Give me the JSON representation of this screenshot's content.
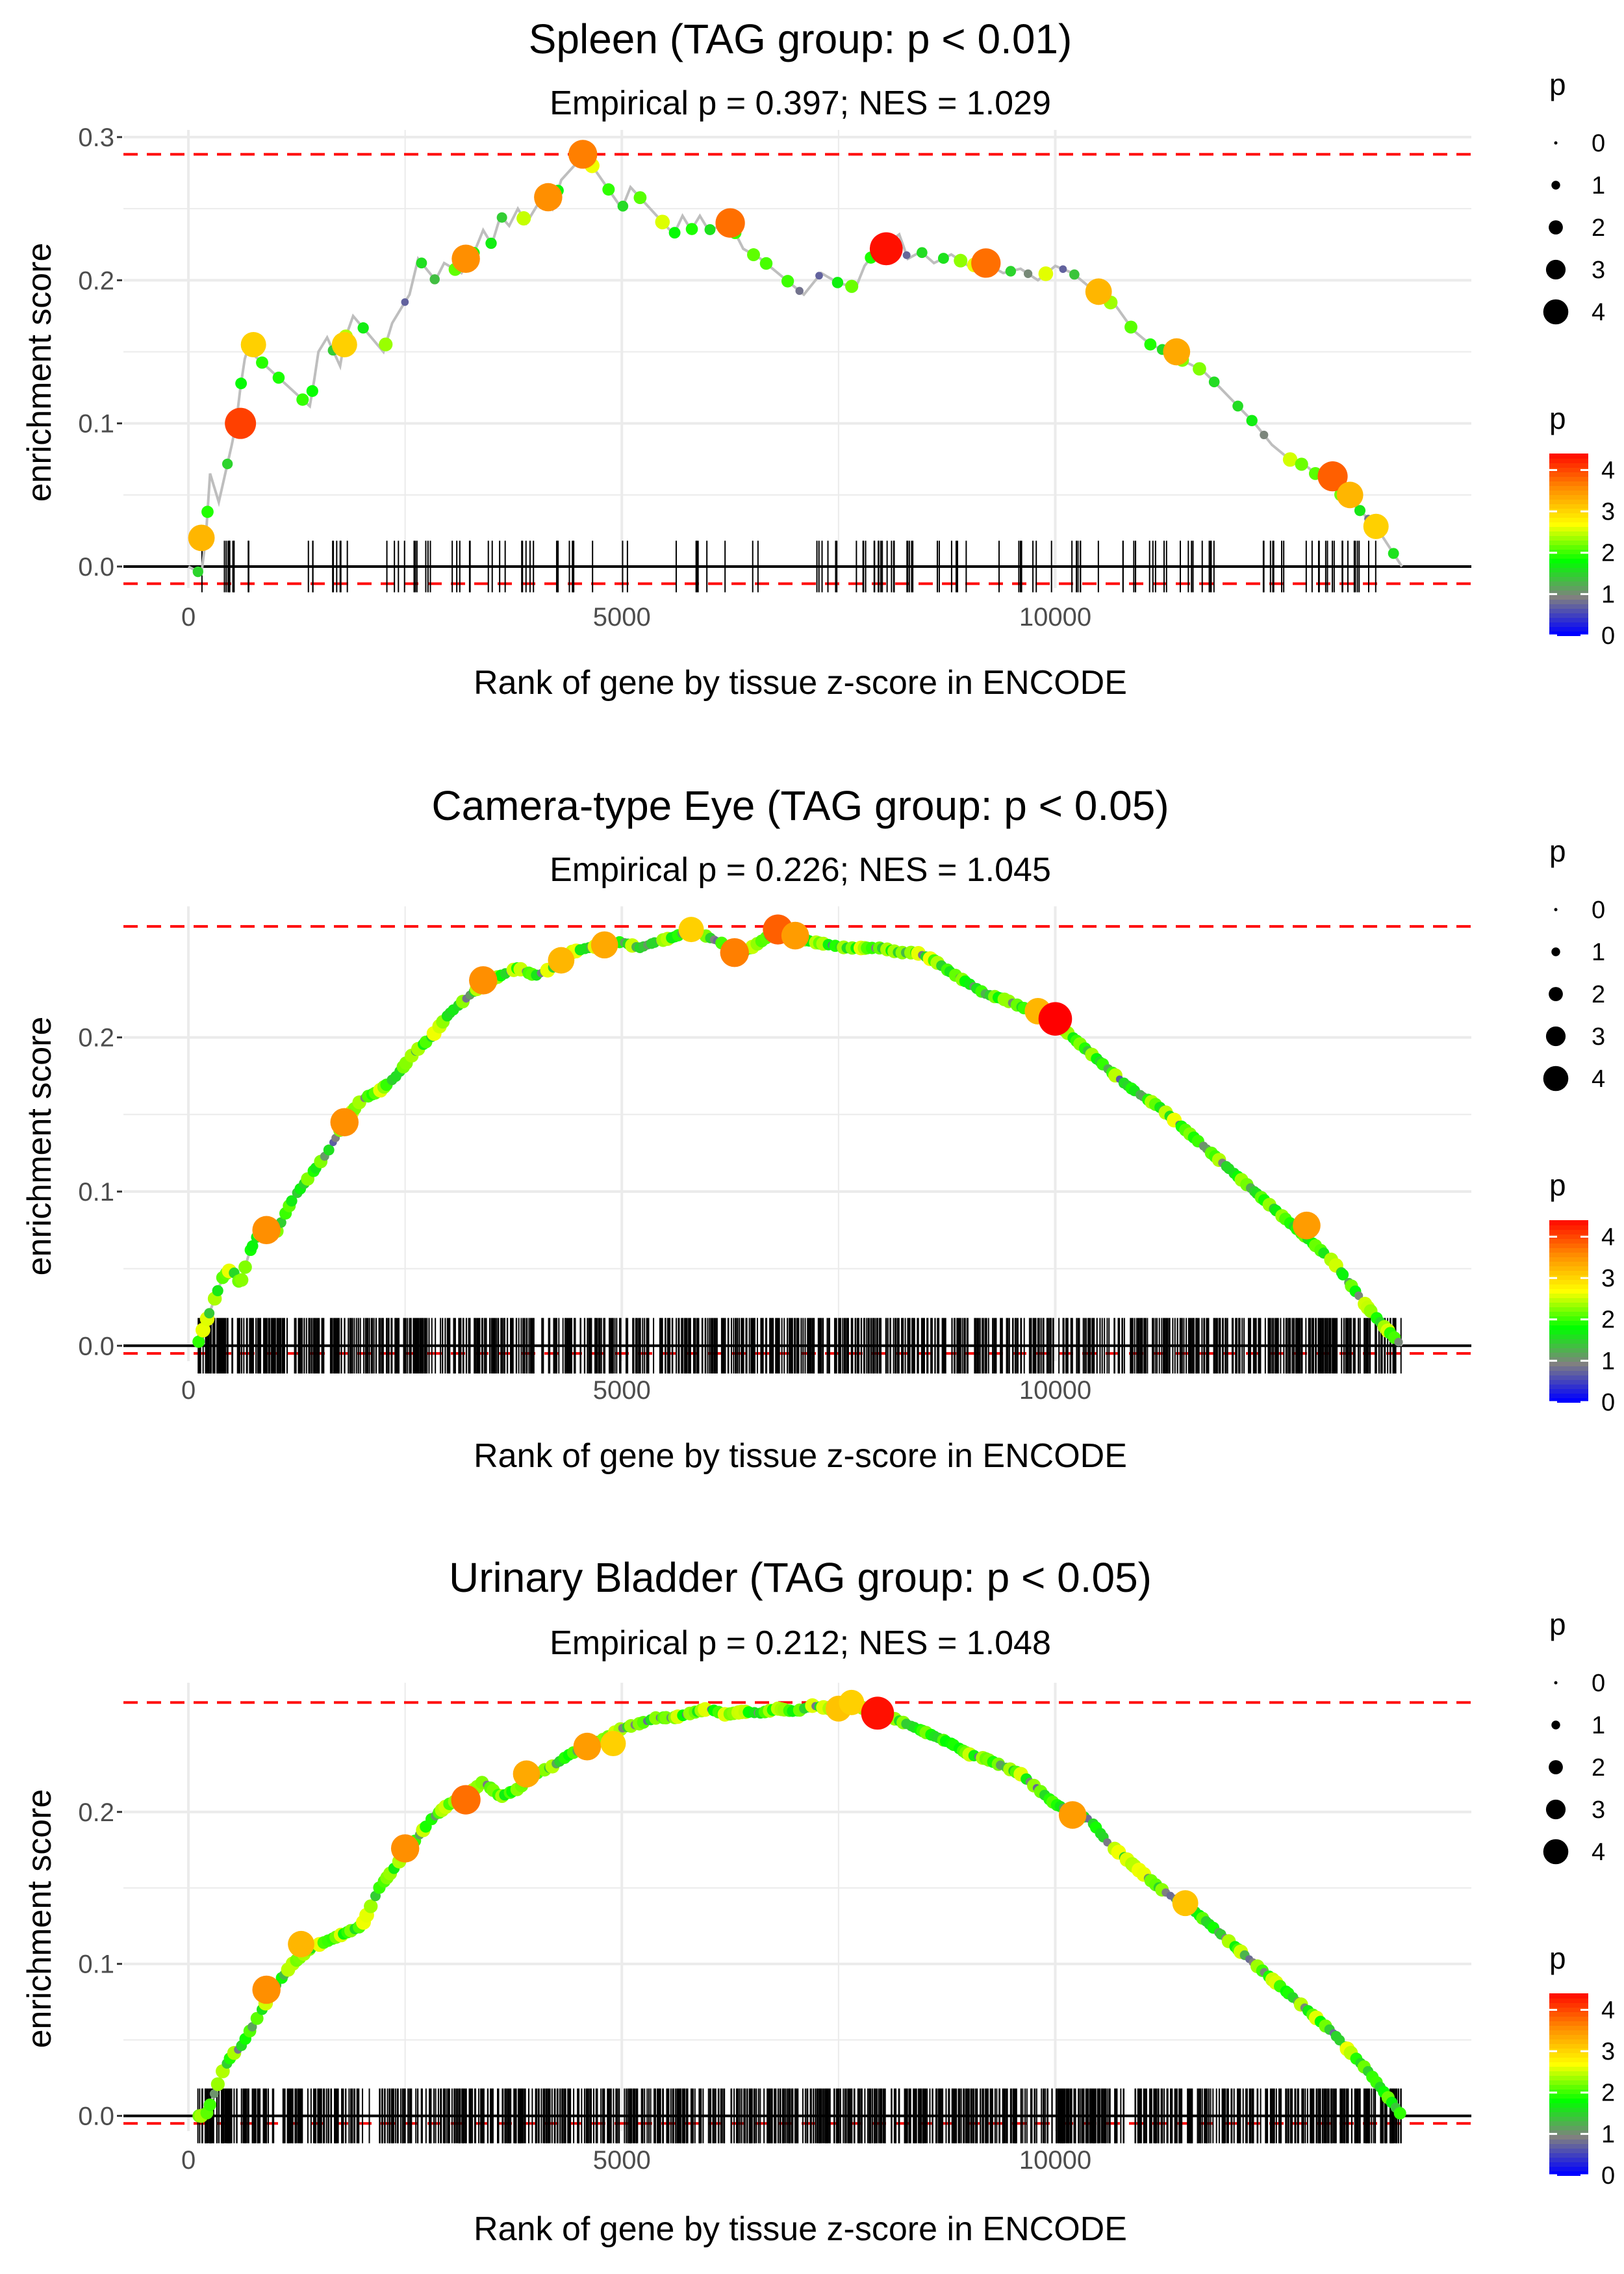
{
  "chart_data": [
    {
      "type": "line",
      "title": "Spleen (TAG group: p < 0.01)",
      "subtitle": "Empirical p = 0.397; NES = 1.029",
      "xlabel": "Rank of gene by tissue z-score in ENCODE",
      "ylabel": "enrichment score",
      "xlim": [
        -750,
        14800
      ],
      "ylim": [
        -0.015,
        0.305
      ],
      "xticks": [
        0,
        5000,
        10000
      ],
      "xtick_labels": [
        "0",
        "5000",
        "10000"
      ],
      "yticks": [
        0.0,
        0.1,
        0.2,
        0.3
      ],
      "ytick_labels": [
        "0.0",
        "0.1",
        "0.2",
        "0.3"
      ],
      "max_es": 0.288,
      "min_es": -0.012,
      "curve": {
        "x": [
          0,
          150,
          200,
          250,
          350,
          500,
          550,
          600,
          650,
          700,
          750,
          1400,
          1450,
          1500,
          1600,
          1750,
          1800,
          1900,
          2250,
          2350,
          2450,
          2550,
          2650,
          2850,
          2950,
          3150,
          3300,
          3400,
          3500,
          3600,
          3700,
          3800,
          3900,
          4100,
          4200,
          4300,
          4450,
          4550,
          4600,
          5000,
          5100,
          5600,
          5700,
          5800,
          5900,
          6000,
          6250,
          6400,
          6600,
          6800,
          7100,
          7300,
          7500,
          7700,
          7800,
          7900,
          8050,
          8200,
          8300,
          8450,
          8600,
          8800,
          9000,
          9200,
          9400,
          9600,
          9800,
          10000,
          10200,
          10300,
          10500,
          10700,
          10900,
          11100,
          11300,
          11500,
          11700,
          11900,
          12300,
          12500,
          12700,
          12900,
          13100,
          13300,
          13500,
          13700,
          14000
        ],
        "y": [
          0.0,
          -0.005,
          0.02,
          0.065,
          0.045,
          0.085,
          0.1,
          0.125,
          0.145,
          0.155,
          0.148,
          0.112,
          0.13,
          0.15,
          0.16,
          0.14,
          0.158,
          0.175,
          0.15,
          0.17,
          0.18,
          0.19,
          0.215,
          0.2,
          0.212,
          0.205,
          0.22,
          0.235,
          0.225,
          0.245,
          0.238,
          0.25,
          0.24,
          0.26,
          0.25,
          0.27,
          0.28,
          0.288,
          0.285,
          0.25,
          0.265,
          0.232,
          0.245,
          0.235,
          0.245,
          0.235,
          0.24,
          0.222,
          0.215,
          0.205,
          0.19,
          0.205,
          0.198,
          0.195,
          0.21,
          0.218,
          0.225,
          0.232,
          0.215,
          0.22,
          0.212,
          0.218,
          0.21,
          0.212,
          0.205,
          0.208,
          0.2,
          0.21,
          0.205,
          0.2,
          0.19,
          0.182,
          0.165,
          0.155,
          0.15,
          0.143,
          0.137,
          0.125,
          0.1,
          0.085,
          0.075,
          0.07,
          0.06,
          0.05,
          0.04,
          0.028,
          0.0
        ]
      },
      "highlight_points": [
        {
          "x": 150,
          "y": 0.02,
          "p": 3.2
        },
        {
          "x": 600,
          "y": 0.1,
          "p": 4.0
        },
        {
          "x": 750,
          "y": 0.155,
          "p": 3.0
        },
        {
          "x": 1800,
          "y": 0.155,
          "p": 3.0
        },
        {
          "x": 3200,
          "y": 0.215,
          "p": 3.5
        },
        {
          "x": 4150,
          "y": 0.258,
          "p": 3.5
        },
        {
          "x": 4550,
          "y": 0.288,
          "p": 3.6
        },
        {
          "x": 6250,
          "y": 0.24,
          "p": 3.7
        },
        {
          "x": 8050,
          "y": 0.222,
          "p": 4.3
        },
        {
          "x": 9200,
          "y": 0.212,
          "p": 3.7
        },
        {
          "x": 10500,
          "y": 0.192,
          "p": 3.2
        },
        {
          "x": 11400,
          "y": 0.15,
          "p": 3.3
        },
        {
          "x": 13200,
          "y": 0.063,
          "p": 3.8
        },
        {
          "x": 13400,
          "y": 0.05,
          "p": 3.2
        },
        {
          "x": 13700,
          "y": 0.028,
          "p": 3.0
        }
      ],
      "hit_count": 160,
      "hit_seed": 11,
      "dot_density": 0.5,
      "hit_clusters": [
        [
          100,
          800,
          12
        ],
        [
          1300,
          1500,
          3
        ],
        [
          1600,
          2000,
          6
        ],
        [
          2200,
          2900,
          10
        ],
        [
          3000,
          4700,
          22
        ],
        [
          5000,
          5100,
          2
        ],
        [
          5600,
          6200,
          6
        ],
        [
          6500,
          6700,
          2
        ],
        [
          7100,
          7600,
          6
        ],
        [
          7700,
          8400,
          20
        ],
        [
          8600,
          9100,
          6
        ],
        [
          9300,
          9800,
          6
        ],
        [
          9900,
          10500,
          7
        ],
        [
          10700,
          11300,
          9
        ],
        [
          11400,
          12000,
          9
        ],
        [
          12400,
          13700,
          24
        ]
      ]
    },
    {
      "type": "line",
      "title": "Camera-type Eye (TAG group: p < 0.05)",
      "subtitle": "Empirical p = 0.226; NES = 1.045",
      "xlabel": "Rank of gene by tissue z-score in ENCODE",
      "ylabel": "enrichment score",
      "xlim": [
        -750,
        14800
      ],
      "ylim": [
        -0.01,
        0.285
      ],
      "xticks": [
        0,
        5000,
        10000
      ],
      "xtick_labels": [
        "0",
        "5000",
        "10000"
      ],
      "yticks": [
        0.0,
        0.1,
        0.2
      ],
      "ytick_labels": [
        "0.0",
        "0.1",
        "0.2"
      ],
      "max_es": 0.272,
      "min_es": -0.005,
      "curve": {
        "x": [
          100,
          200,
          300,
          400,
          500,
          600,
          700,
          800,
          900,
          1000,
          1200,
          1400,
          1600,
          1800,
          2000,
          2200,
          2400,
          2600,
          2800,
          3000,
          3200,
          3400,
          3600,
          3800,
          4000,
          4200,
          4400,
          4600,
          4800,
          5000,
          5200,
          5400,
          5600,
          5800,
          6000,
          6200,
          6400,
          6600,
          6800,
          7000,
          7200,
          7400,
          7600,
          7800,
          8000,
          8200,
          8400,
          8600,
          8800,
          9000,
          9200,
          9400,
          9600,
          9800,
          10000,
          10200,
          10400,
          10600,
          10800,
          11000,
          11200,
          11400,
          11600,
          11800,
          12000,
          12200,
          12400,
          12600,
          12800,
          13000,
          13200,
          13400,
          13600,
          13800,
          14000
        ],
        "y": [
          0.0,
          0.015,
          0.03,
          0.045,
          0.05,
          0.04,
          0.06,
          0.072,
          0.075,
          0.072,
          0.095,
          0.11,
          0.125,
          0.145,
          0.16,
          0.165,
          0.175,
          0.19,
          0.2,
          0.215,
          0.225,
          0.235,
          0.24,
          0.245,
          0.24,
          0.245,
          0.255,
          0.258,
          0.26,
          0.262,
          0.258,
          0.262,
          0.265,
          0.27,
          0.265,
          0.26,
          0.255,
          0.262,
          0.27,
          0.265,
          0.262,
          0.26,
          0.258,
          0.258,
          0.258,
          0.255,
          0.255,
          0.25,
          0.242,
          0.235,
          0.228,
          0.225,
          0.22,
          0.215,
          0.21,
          0.2,
          0.19,
          0.18,
          0.17,
          0.162,
          0.155,
          0.145,
          0.135,
          0.125,
          0.115,
          0.105,
          0.095,
          0.085,
          0.075,
          0.065,
          0.055,
          0.04,
          0.025,
          0.012,
          0.0
        ]
      },
      "highlight_points": [
        {
          "x": 900,
          "y": 0.075,
          "p": 3.5
        },
        {
          "x": 1800,
          "y": 0.145,
          "p": 3.5
        },
        {
          "x": 3400,
          "y": 0.237,
          "p": 3.5
        },
        {
          "x": 4300,
          "y": 0.25,
          "p": 3.2
        },
        {
          "x": 4800,
          "y": 0.26,
          "p": 3.3
        },
        {
          "x": 5800,
          "y": 0.27,
          "p": 3.0
        },
        {
          "x": 6300,
          "y": 0.255,
          "p": 3.6
        },
        {
          "x": 6800,
          "y": 0.27,
          "p": 3.8
        },
        {
          "x": 7000,
          "y": 0.266,
          "p": 3.4
        },
        {
          "x": 9800,
          "y": 0.217,
          "p": 3.2
        },
        {
          "x": 10000,
          "y": 0.212,
          "p": 4.4
        },
        {
          "x": 12900,
          "y": 0.078,
          "p": 3.4
        }
      ],
      "hit_count": 1000,
      "hit_seed": 23,
      "dot_density": 2.2,
      "hit_clusters": [
        [
          100,
          14000,
          1000
        ]
      ]
    },
    {
      "type": "line",
      "title": "Urinary Bladder (TAG group: p < 0.05)",
      "subtitle": "Empirical p = 0.212; NES = 1.048",
      "xlabel": "Rank of gene by tissue z-score in ENCODE",
      "ylabel": "enrichment score",
      "xlim": [
        -750,
        14800
      ],
      "ylim": [
        -0.01,
        0.285
      ],
      "xticks": [
        0,
        5000,
        10000
      ],
      "xtick_labels": [
        "0",
        "5000",
        "10000"
      ],
      "yticks": [
        0.0,
        0.1,
        0.2
      ],
      "ytick_labels": [
        "0.0",
        "0.1",
        "0.2"
      ],
      "max_es": 0.272,
      "min_es": -0.005,
      "curve": {
        "x": [
          100,
          200,
          300,
          400,
          500,
          600,
          800,
          1000,
          1200,
          1400,
          1600,
          1800,
          2000,
          2200,
          2400,
          2600,
          2800,
          3000,
          3200,
          3400,
          3600,
          3800,
          4000,
          4200,
          4400,
          4600,
          4800,
          5000,
          5200,
          5400,
          5600,
          5800,
          6000,
          6200,
          6400,
          6600,
          6800,
          7000,
          7200,
          7400,
          7600,
          7800,
          8000,
          8200,
          8400,
          8600,
          8800,
          9000,
          9200,
          9400,
          9600,
          9800,
          10000,
          10200,
          10400,
          10600,
          10800,
          11000,
          11200,
          11400,
          11600,
          11800,
          12000,
          12200,
          12400,
          12600,
          12800,
          13000,
          13200,
          13400,
          13600,
          13800,
          14000
        ],
        "y": [
          0.0,
          0.0,
          0.015,
          0.03,
          0.04,
          0.045,
          0.065,
          0.085,
          0.1,
          0.11,
          0.115,
          0.12,
          0.125,
          0.15,
          0.165,
          0.18,
          0.195,
          0.205,
          0.21,
          0.22,
          0.21,
          0.215,
          0.225,
          0.23,
          0.238,
          0.243,
          0.248,
          0.255,
          0.258,
          0.262,
          0.262,
          0.265,
          0.268,
          0.264,
          0.266,
          0.265,
          0.268,
          0.266,
          0.27,
          0.268,
          0.272,
          0.268,
          0.265,
          0.26,
          0.255,
          0.25,
          0.245,
          0.238,
          0.235,
          0.23,
          0.225,
          0.215,
          0.205,
          0.2,
          0.195,
          0.18,
          0.17,
          0.16,
          0.15,
          0.142,
          0.135,
          0.125,
          0.115,
          0.105,
          0.095,
          0.085,
          0.075,
          0.065,
          0.055,
          0.042,
          0.03,
          0.015,
          0.0
        ]
      },
      "highlight_points": [
        {
          "x": 900,
          "y": 0.083,
          "p": 3.5
        },
        {
          "x": 1300,
          "y": 0.113,
          "p": 3.2
        },
        {
          "x": 2500,
          "y": 0.176,
          "p": 3.5
        },
        {
          "x": 3200,
          "y": 0.208,
          "p": 3.7
        },
        {
          "x": 3900,
          "y": 0.225,
          "p": 3.3
        },
        {
          "x": 4600,
          "y": 0.243,
          "p": 3.4
        },
        {
          "x": 4900,
          "y": 0.245,
          "p": 3.0
        },
        {
          "x": 7500,
          "y": 0.268,
          "p": 3.1
        },
        {
          "x": 7650,
          "y": 0.272,
          "p": 3.0
        },
        {
          "x": 7950,
          "y": 0.265,
          "p": 4.3
        },
        {
          "x": 10200,
          "y": 0.198,
          "p": 3.4
        },
        {
          "x": 11500,
          "y": 0.14,
          "p": 3.1
        }
      ],
      "hit_count": 1050,
      "hit_seed": 37,
      "dot_density": 2.2,
      "hit_clusters": [
        [
          100,
          14000,
          1050
        ]
      ]
    }
  ],
  "legend": {
    "size_title": "p",
    "size_labels": [
      "0",
      "1",
      "2",
      "3",
      "4"
    ],
    "color_title": "p",
    "color_labels": [
      "0",
      "1",
      "2",
      "3",
      "4"
    ]
  },
  "colors": {
    "gradient": [
      "#0000ff",
      "#808080",
      "#00ff00",
      "#ffff00",
      "#ff8c00",
      "#ff0000"
    ],
    "threshold_line": "#ff0000",
    "curve_line": "#bebebe",
    "grid": "#ebebeb",
    "hit_mark": "#000000"
  }
}
